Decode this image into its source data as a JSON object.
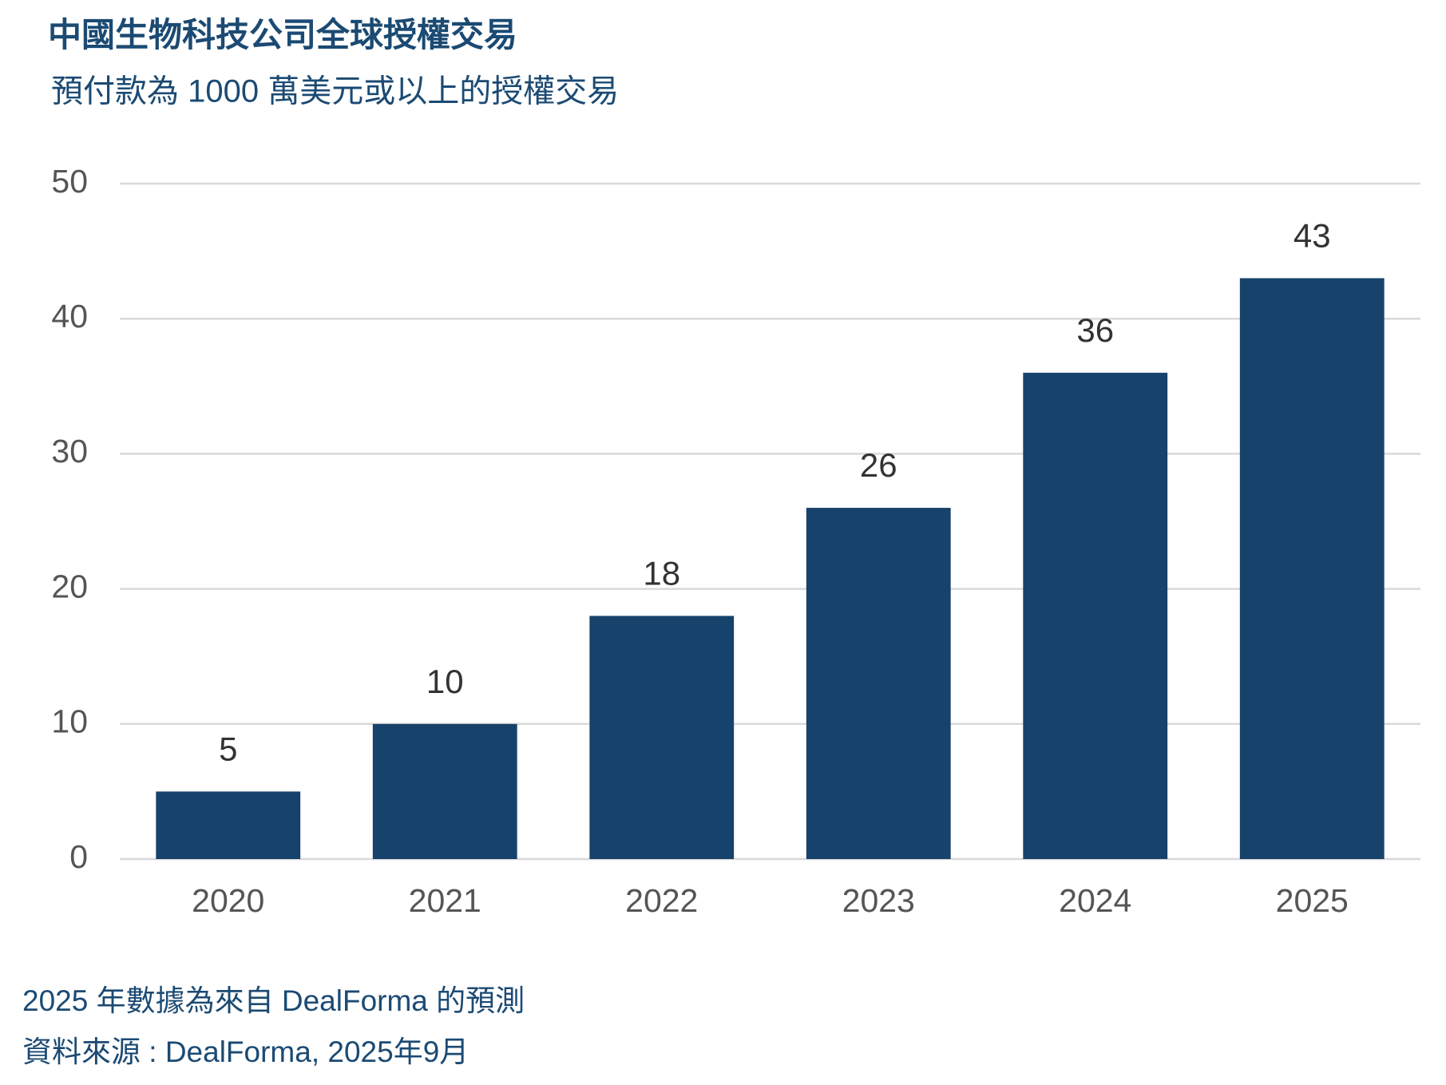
{
  "chart_data": {
    "type": "bar",
    "title": "中國生物科技公司全球授權交易",
    "subtitle": "預付款為 1000 萬美元或以上的授權交易",
    "categories": [
      "2020",
      "2021",
      "2022",
      "2023",
      "2024",
      "2025"
    ],
    "values": [
      5,
      10,
      18,
      26,
      36,
      43
    ],
    "color": "#17426b",
    "ylim": [
      0,
      50
    ],
    "yticks": [
      0,
      10,
      20,
      30,
      40,
      50
    ],
    "grid": true,
    "footnotes": [
      "2025 年數據為來自 DealForma 的預測",
      "資料來源 : DealForma, 2025年9月"
    ]
  }
}
